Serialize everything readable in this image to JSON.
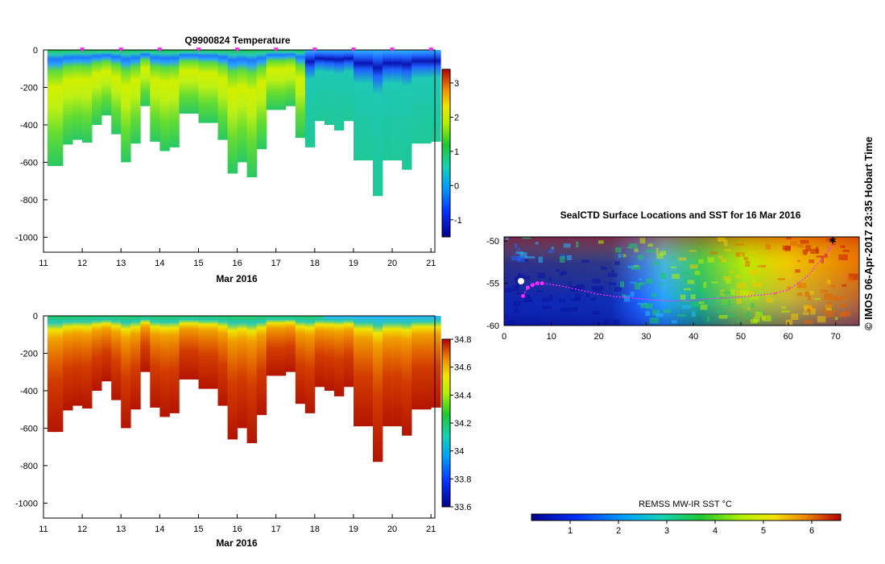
{
  "colors": {
    "deep": "#000a8c",
    "blue": "#1e3cff",
    "cyan": "#28b4ff",
    "teal": "#1ec8b4",
    "green": "#23c837",
    "lime": "#b4f000",
    "yellow": "#f0f000",
    "orange": "#f08c00",
    "red": "#d23200",
    "dark": "#8c0000",
    "magenta": "#ff28ff"
  },
  "chart_data": [
    {
      "type": "heatmap",
      "title": "Q9900824  Temperature",
      "xlabel": "Mar 2016",
      "x_ticks": [
        "11",
        "12",
        "13",
        "14",
        "15",
        "16",
        "17",
        "18",
        "19",
        "20",
        "21"
      ],
      "y_ticks": [
        "0",
        "-200",
        "-400",
        "-600",
        "-800",
        "-1000"
      ],
      "ylim": [
        -1080,
        0
      ],
      "xlim": [
        11,
        21.1
      ],
      "colorbar_ticks": [
        "3",
        "2",
        "1",
        "0",
        "-1"
      ],
      "colorbar_range": [
        -1.5,
        3.4
      ],
      "profile_times": [
        11.1,
        11.25,
        11.5,
        11.75,
        12.0,
        12.25,
        12.5,
        12.75,
        13.0,
        13.25,
        13.5,
        13.75,
        14.0,
        14.25,
        14.5,
        14.75,
        15.0,
        15.25,
        15.5,
        15.75,
        16.0,
        16.25,
        16.5,
        16.75,
        17.0,
        17.25,
        17.5,
        17.75,
        18.0,
        18.25,
        18.5,
        18.75,
        19.0,
        19.25,
        19.5,
        19.75,
        20.0,
        20.25,
        20.5,
        20.75,
        21.0
      ],
      "max_depths": [
        -620,
        -620,
        -505,
        -480,
        -495,
        -400,
        -350,
        -450,
        -600,
        -500,
        -300,
        -490,
        -540,
        -520,
        -340,
        -340,
        -390,
        -390,
        -480,
        -660,
        -600,
        -680,
        -530,
        -320,
        -320,
        -300,
        -470,
        -520,
        -380,
        -400,
        -430,
        -380,
        -590,
        -590,
        -780,
        -590,
        -590,
        -640,
        -500,
        -500,
        -490
      ]
    },
    {
      "type": "heatmap",
      "title": "",
      "xlabel": "Mar 2016",
      "x_ticks": [
        "11",
        "12",
        "13",
        "14",
        "15",
        "16",
        "17",
        "18",
        "19",
        "20",
        "21"
      ],
      "y_ticks": [
        "0",
        "-200",
        "-400",
        "-600",
        "-800",
        "-1000"
      ],
      "ylim": [
        -1080,
        0
      ],
      "xlim": [
        11,
        21.1
      ],
      "colorbar_ticks": [
        "34.8",
        "34.6",
        "34.4",
        "34.2",
        "34",
        "33.8",
        "33.6"
      ],
      "colorbar_range": [
        33.6,
        34.8
      ]
    },
    {
      "type": "heatmap",
      "title": "SealCTD Surface Locations and SST for 16 Mar 2016",
      "x_ticks": [
        "0",
        "10",
        "20",
        "30",
        "40",
        "50",
        "60",
        "70"
      ],
      "y_ticks": [
        "-50",
        "-55",
        "-60"
      ],
      "xlim": [
        0,
        75
      ],
      "ylim": [
        -60,
        -49.5
      ],
      "track_lon": [
        4,
        5,
        6,
        7,
        8,
        12,
        16,
        20,
        24,
        28,
        32,
        36,
        40,
        44,
        48,
        52,
        56,
        60,
        64,
        68,
        70
      ],
      "track_lat": [
        -56.5,
        -55.5,
        -55.2,
        -55,
        -55,
        -55.3,
        -55.8,
        -56.3,
        -56.6,
        -56.8,
        -57.0,
        -57.1,
        -57.0,
        -56.8,
        -56.7,
        -56.5,
        -56.3,
        -55.8,
        -54.2,
        -51.5,
        -50.0
      ]
    },
    {
      "type": "heatmap",
      "title": "REMSS MW-IR SST °C",
      "colorbar_ticks": [
        "1",
        "2",
        "3",
        "4",
        "5",
        "6"
      ],
      "colorbar_range": [
        0.2,
        6.6
      ]
    }
  ],
  "footer": {
    "credit": "©  IMOS 06-Apr-2017 23:35 Hobart Time"
  }
}
